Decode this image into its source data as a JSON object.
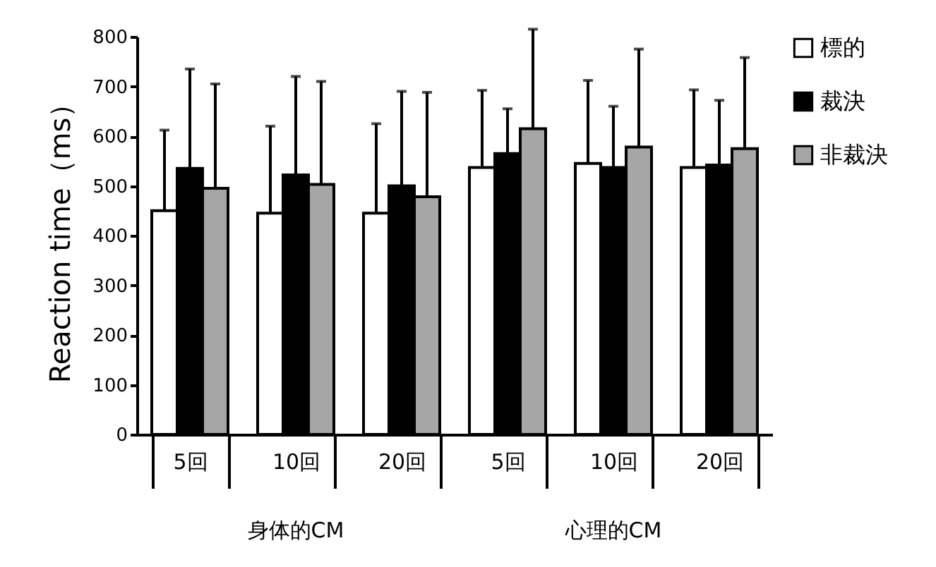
{
  "chart_data": {
    "type": "bar",
    "ylabel": "Reaction time（ms）",
    "categories": [
      "5回",
      "10回",
      "20回",
      "5回",
      "10回",
      "20回"
    ],
    "series": [
      {
        "name": "標的",
        "color": "#ffffff",
        "values": [
          450,
          445,
          445,
          537,
          545,
          537
        ],
        "errors": [
          [
            450,
            612
          ],
          [
            445,
            620
          ],
          [
            445,
            625
          ],
          [
            537,
            692
          ],
          [
            545,
            712
          ],
          [
            537,
            693
          ]
        ]
      },
      {
        "name": "裁決",
        "color": "#000000",
        "values": [
          535,
          522,
          500,
          565,
          537,
          542
        ],
        "errors": [
          [
            535,
            735
          ],
          [
            522,
            720
          ],
          [
            500,
            690
          ],
          [
            565,
            655
          ],
          [
            537,
            660
          ],
          [
            542,
            672
          ]
        ]
      },
      {
        "name": "非裁決",
        "color": "#a6a6a6",
        "values": [
          495,
          503,
          478,
          615,
          578,
          575
        ],
        "errors": [
          [
            495,
            705
          ],
          [
            503,
            710
          ],
          [
            478,
            688
          ],
          [
            615,
            815
          ],
          [
            578,
            775
          ],
          [
            575,
            758
          ]
        ]
      }
    ],
    "annotations": [
      "身体的CM",
      "心理的CM"
    ],
    "ylim": [
      0,
      800
    ],
    "yticks": [
      0,
      100,
      200,
      300,
      400,
      500,
      600,
      700,
      800
    ],
    "grid": false,
    "legend": "right"
  }
}
